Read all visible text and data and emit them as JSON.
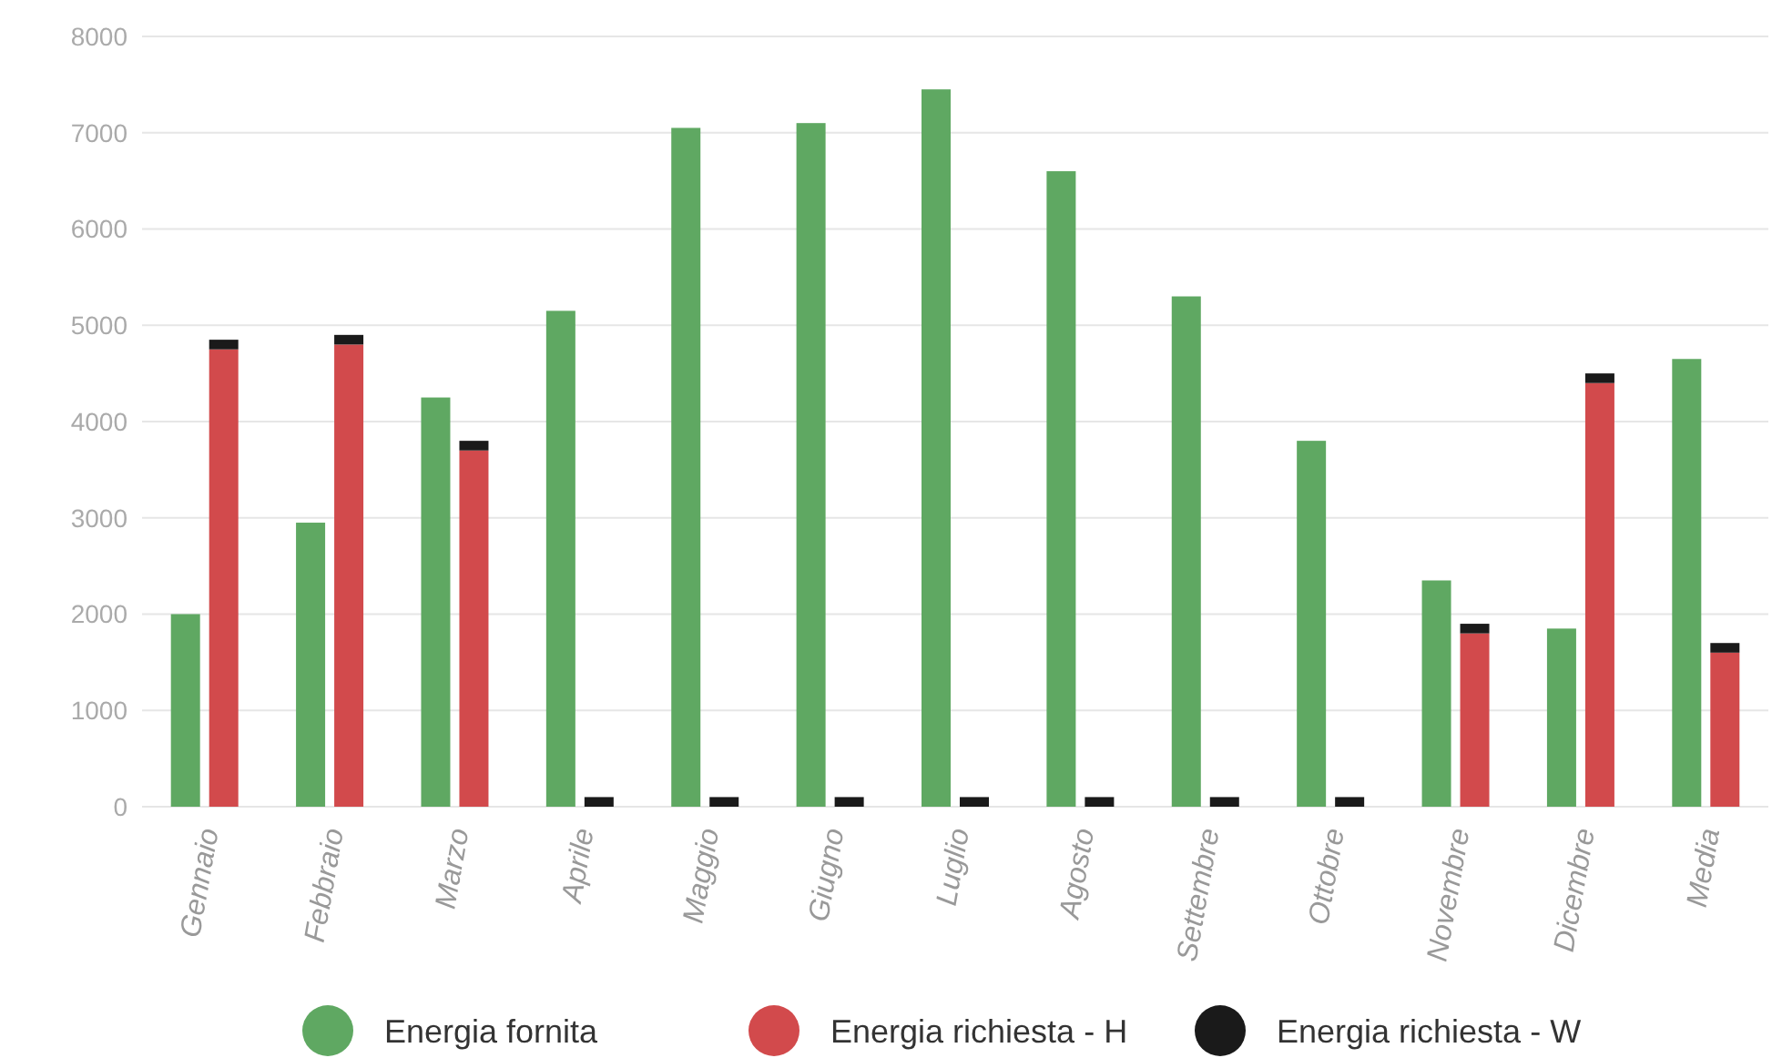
{
  "chart_data": {
    "type": "bar",
    "categories": [
      "Gennaio",
      "Febbraio",
      "Marzo",
      "Aprile",
      "Maggio",
      "Giugno",
      "Luglio",
      "Agosto",
      "Settembre",
      "Ottobre",
      "Novembre",
      "Dicembre",
      "Media"
    ],
    "series": [
      {
        "name": "Energia fornita",
        "color": "#5fa862",
        "values": [
          2000,
          2950,
          4250,
          5150,
          7050,
          7100,
          7450,
          6600,
          5300,
          3800,
          2350,
          1850,
          4650
        ]
      },
      {
        "name": "Energia richiesta - H",
        "color": "#d24a4c",
        "values": [
          4750,
          4800,
          3700,
          0,
          0,
          0,
          0,
          0,
          0,
          0,
          1800,
          4400,
          1600
        ]
      },
      {
        "name": "Energia richiesta - W",
        "color": "#1a1a1a",
        "base": [
          4750,
          4800,
          3700,
          0,
          0,
          0,
          0,
          0,
          0,
          0,
          1800,
          4400,
          1600
        ],
        "values": [
          100,
          100,
          100,
          100,
          100,
          100,
          100,
          100,
          100,
          100,
          100,
          100,
          100
        ]
      }
    ],
    "ylim": [
      0,
      8000
    ],
    "yticks": [
      0,
      1000,
      2000,
      3000,
      4000,
      5000,
      6000,
      7000,
      8000
    ],
    "grid": "y",
    "legend": "bottom"
  }
}
